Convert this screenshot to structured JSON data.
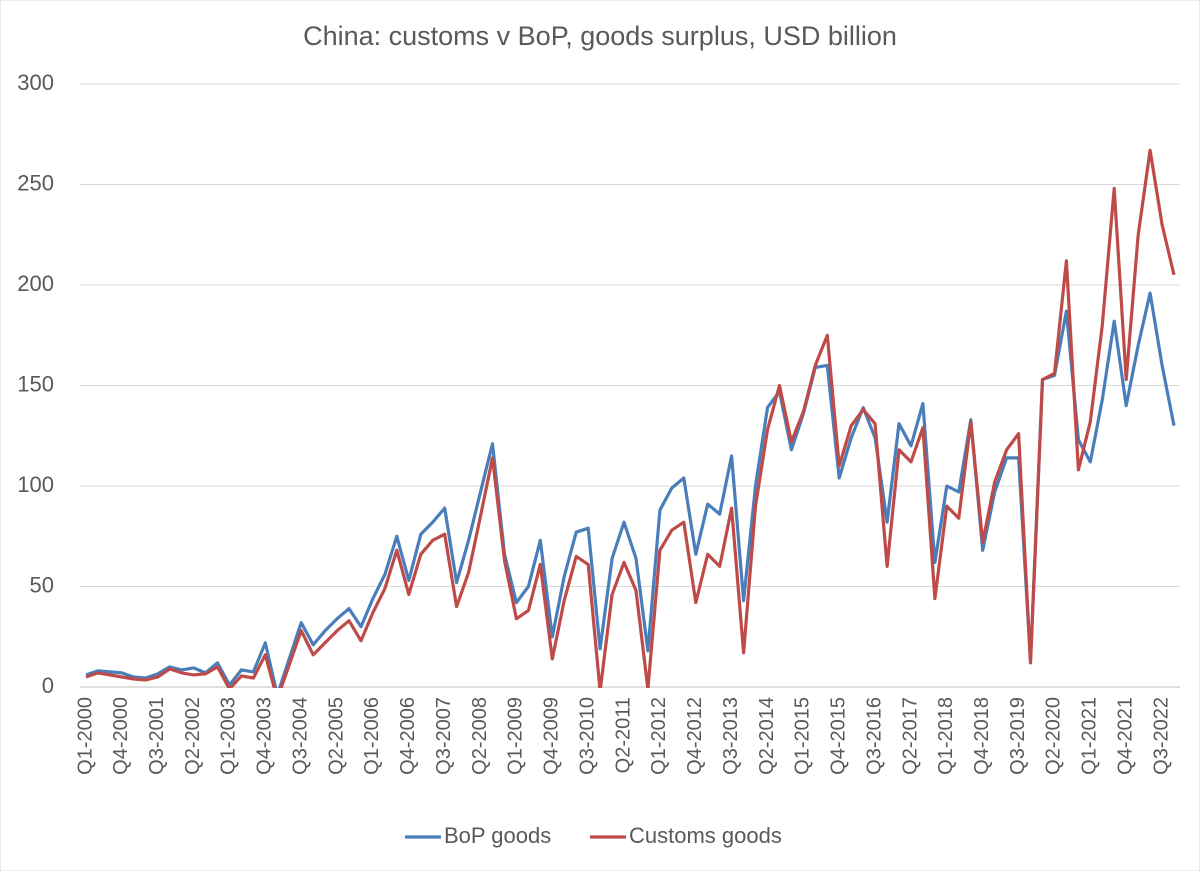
{
  "chart_data": {
    "type": "line",
    "title": "China: customs v BoP, goods surplus, USD billion",
    "categories": [
      "Q1-2000",
      null,
      null,
      "Q4-2000",
      null,
      null,
      "Q3-2001",
      null,
      null,
      "Q2-2002",
      null,
      null,
      "Q1-2003",
      null,
      null,
      "Q4-2003",
      null,
      null,
      "Q3-2004",
      null,
      null,
      "Q2-2005",
      null,
      null,
      "Q1-2006",
      null,
      null,
      "Q4-2006",
      null,
      null,
      "Q3-2007",
      null,
      null,
      "Q2-2008",
      null,
      null,
      "Q1-2009",
      null,
      null,
      "Q4-2009",
      null,
      null,
      "Q3-2010",
      null,
      null,
      "Q2-2011",
      null,
      null,
      "Q1-2012",
      null,
      null,
      "Q4-2012",
      null,
      null,
      "Q3-2013",
      null,
      null,
      "Q2-2014",
      null,
      null,
      "Q1-2015",
      null,
      null,
      "Q4-2015",
      null,
      null,
      "Q3-2016",
      null,
      null,
      "Q2-2017",
      null,
      null,
      "Q1-2018",
      null,
      null,
      "Q4-2018",
      null,
      null,
      "Q3-2019",
      null,
      null,
      "Q2-2020",
      null,
      null,
      "Q1-2021",
      null,
      null,
      "Q4-2021",
      null,
      null,
      "Q3-2022",
      null
    ],
    "series": [
      {
        "name": "BoP goods",
        "color": "#4a7ebb",
        "values": [
          6,
          8,
          7.5,
          7,
          5,
          4.5,
          6.5,
          10,
          8.5,
          9.5,
          7,
          12,
          1,
          8.5,
          7.5,
          22,
          -4,
          14,
          32,
          21,
          28,
          34,
          39,
          30,
          44,
          56,
          75,
          53,
          76,
          82,
          89,
          52,
          73,
          97,
          121,
          66,
          42,
          50,
          73,
          25,
          55,
          77,
          79,
          19,
          64,
          82,
          64,
          18,
          88,
          99,
          104,
          66,
          91,
          86,
          115,
          43,
          100,
          139,
          147,
          118,
          136,
          159,
          160,
          104,
          124,
          139,
          124,
          82,
          131,
          120,
          141,
          62,
          100,
          97,
          133,
          68,
          97,
          114,
          114,
          13,
          153,
          155,
          187,
          123,
          112,
          143,
          182,
          140,
          170,
          196,
          160,
          130
        ]
      },
      {
        "name": "Customs goods",
        "color": "#be4b48",
        "values": [
          5,
          7,
          6,
          5,
          4,
          3.5,
          5,
          9,
          7,
          6,
          6.5,
          10,
          -1,
          5.5,
          4.5,
          16,
          -6,
          11,
          28,
          16,
          22,
          28,
          33,
          23,
          37,
          49,
          68,
          46,
          66,
          73,
          76,
          40,
          57,
          85,
          114,
          63,
          34,
          38,
          61,
          14,
          43,
          65,
          61,
          -2,
          46,
          62,
          48,
          -1,
          68,
          78,
          82,
          42,
          66,
          60,
          89,
          17,
          90,
          128,
          150,
          122,
          137,
          160,
          175,
          110,
          130,
          138,
          131,
          60,
          118,
          112,
          129,
          44,
          90,
          84,
          132,
          72,
          102,
          118,
          126,
          12,
          153,
          156,
          212,
          108,
          132,
          180,
          248,
          153,
          225,
          267,
          230,
          205
        ]
      }
    ],
    "ylim": [
      0,
      300
    ],
    "yticks": [
      0,
      50,
      100,
      150,
      200,
      250,
      300
    ],
    "grid": true,
    "legend": "bottom"
  }
}
